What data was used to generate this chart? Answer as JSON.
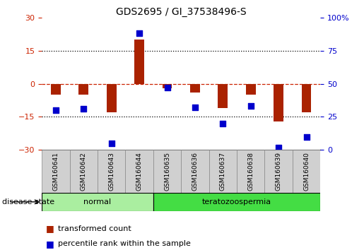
{
  "title": "GDS2695 / GI_37538496-S",
  "samples": [
    "GSM160641",
    "GSM160642",
    "GSM160643",
    "GSM160644",
    "GSM160635",
    "GSM160636",
    "GSM160637",
    "GSM160638",
    "GSM160639",
    "GSM160640"
  ],
  "red_values": [
    -5.0,
    -5.0,
    -13.0,
    20.0,
    -2.0,
    -4.0,
    -11.0,
    -5.0,
    -17.0,
    -13.0
  ],
  "blue_percentiles": [
    30,
    31,
    5,
    88,
    47,
    32,
    20,
    33,
    2,
    10
  ],
  "ylim_left": [
    -30,
    30
  ],
  "ylim_right": [
    0,
    100
  ],
  "yticks_left": [
    -30,
    -15,
    0,
    15,
    30
  ],
  "yticks_right": [
    0,
    25,
    50,
    75,
    100
  ],
  "ytick_right_labels": [
    "0",
    "25",
    "50",
    "75",
    "100%"
  ],
  "left_axis_color": "#cc2200",
  "right_axis_color": "#0000cc",
  "bar_color": "#aa2200",
  "dot_color": "#0000cc",
  "hline_dotted": [
    -15,
    15
  ],
  "hline_dashed": [
    0
  ],
  "groups": [
    {
      "label": "normal",
      "start": 0,
      "end": 4,
      "color": "#aaeea0"
    },
    {
      "label": "teratozoospermia",
      "start": 4,
      "end": 10,
      "color": "#44dd44"
    }
  ],
  "disease_label": "disease state",
  "legend_red": "transformed count",
  "legend_blue": "percentile rank within the sample",
  "bar_width": 0.35,
  "dot_size": 40,
  "label_box_color": "#d0d0d0",
  "fig_width": 5.15,
  "fig_height": 3.54,
  "dpi": 100
}
